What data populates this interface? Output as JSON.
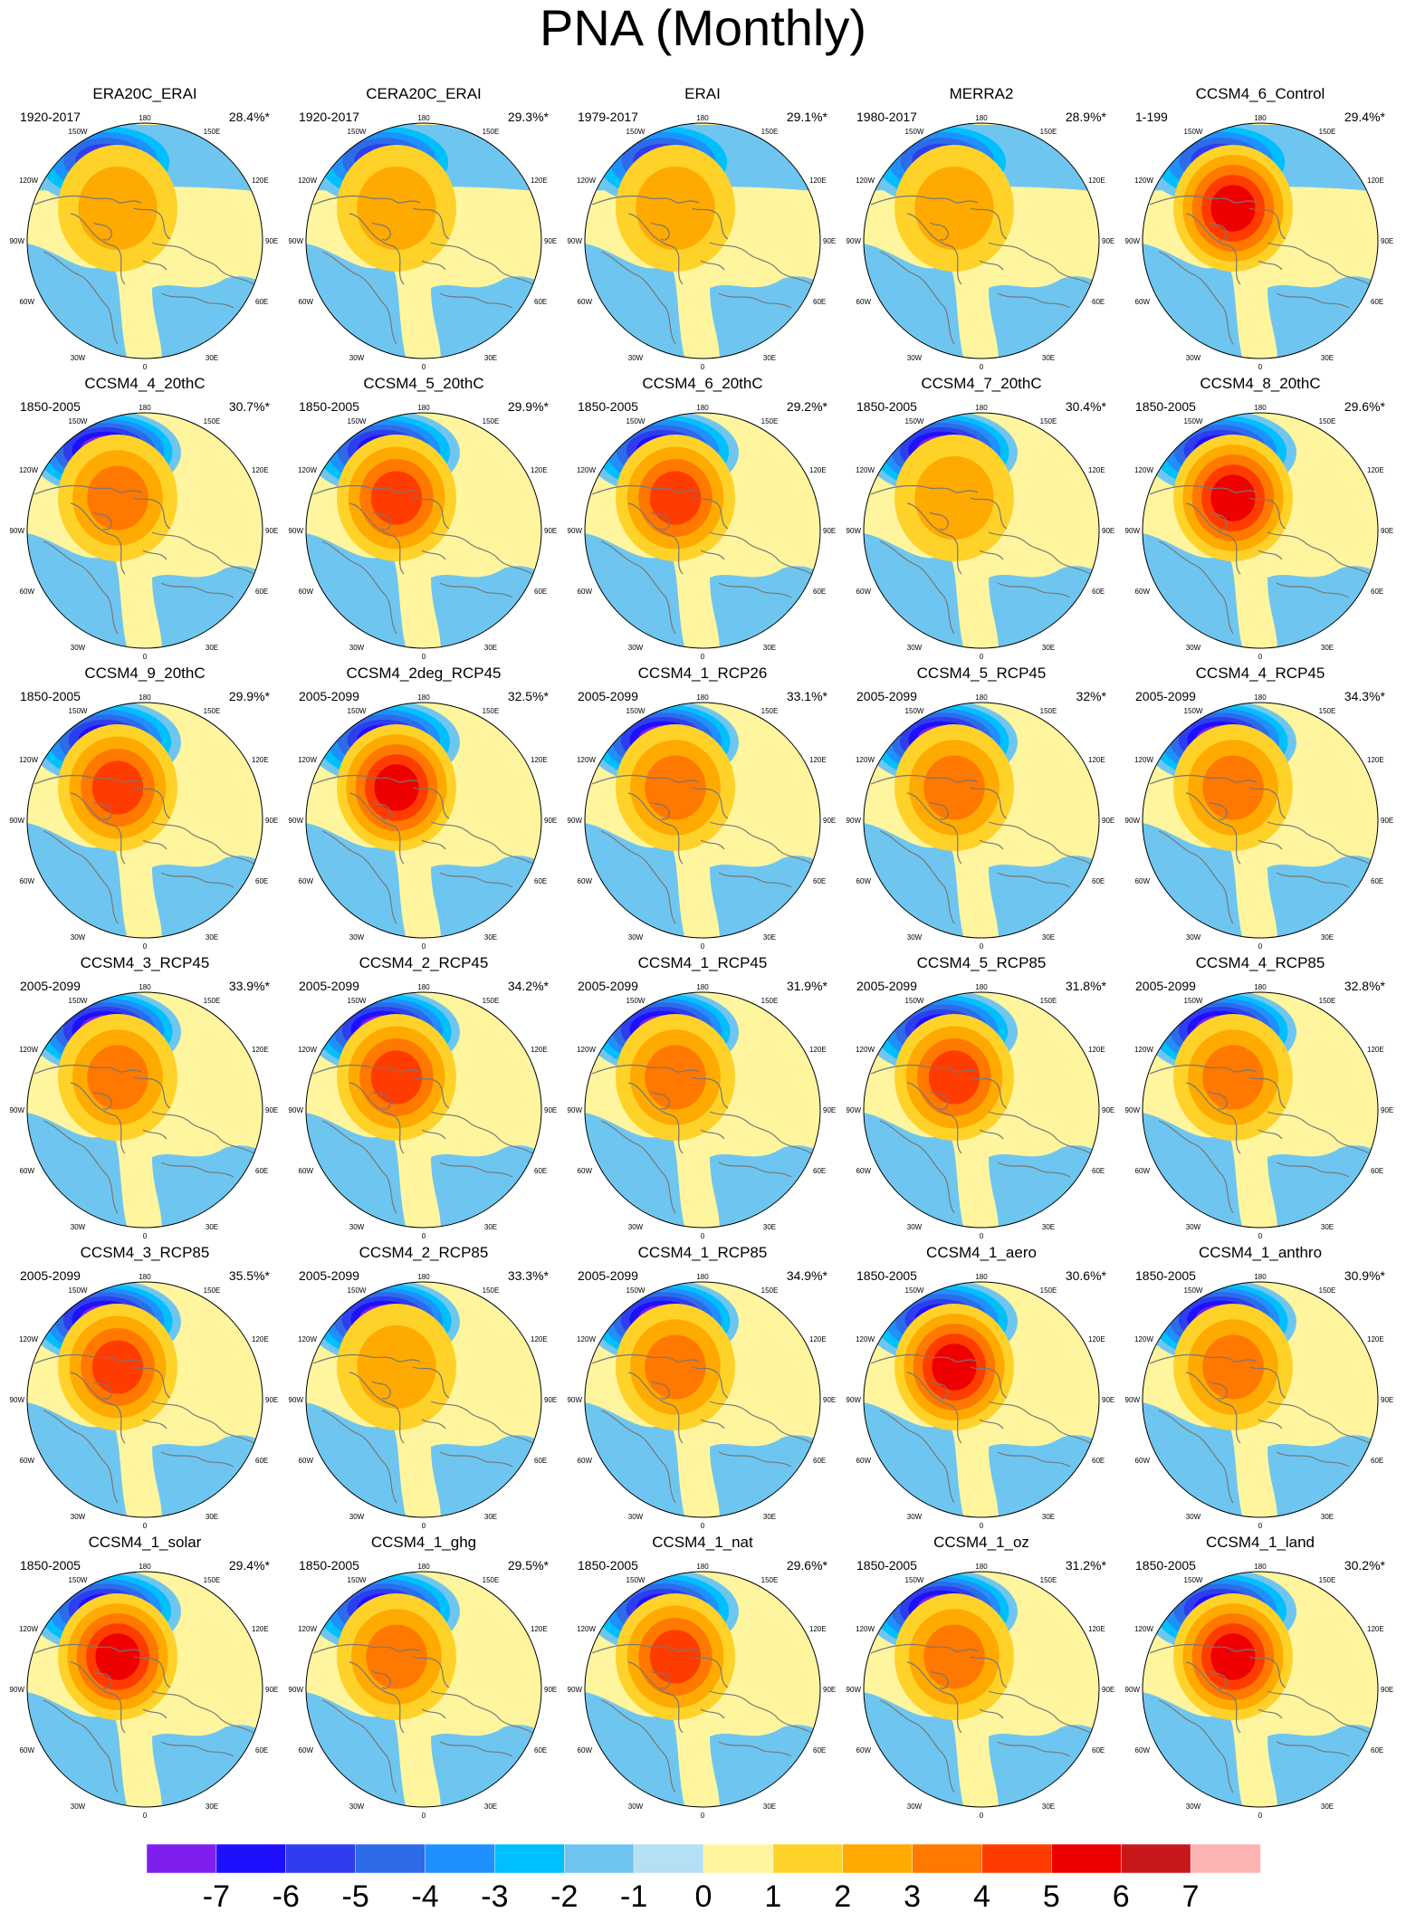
{
  "title": "PNA (Monthly)",
  "colors": {
    "levels": [
      "#7f1fef",
      "#1f0fff",
      "#2e3df0",
      "#2d6be8",
      "#1e90ff",
      "#00bfff",
      "#6ec6f0",
      "#b4dff4",
      "#fff59e",
      "#ffd22a",
      "#ffaa00",
      "#ff7800",
      "#ff3c00",
      "#ee0000",
      "#c8181c",
      "#ffb4b4"
    ],
    "coast": "#777777",
    "border": "#000000"
  },
  "colorbar": {
    "labels": [
      "-7",
      "-6",
      "-5",
      "-4",
      "-3",
      "-2",
      "-1",
      "0",
      "1",
      "2",
      "3",
      "4",
      "5",
      "6",
      "7"
    ]
  },
  "map_labels": {
    "top": "180",
    "left_top": "150W",
    "right_top": "150E",
    "left_upper": "120W",
    "right_upper": "120E",
    "left_mid": "90W",
    "right_mid": "90E",
    "left_lower": "60W",
    "right_lower": "60E",
    "left_bottom": "30W",
    "right_bottom": "30E",
    "bottom": "0"
  },
  "panels": [
    {
      "name": "ERA20C_ERAI",
      "years": "1920-2017",
      "pct": "28.4%*",
      "pos_peak": 2,
      "neg_peak": 5,
      "mid_neg": true
    },
    {
      "name": "CERA20C_ERAI",
      "years": "1920-2017",
      "pct": "29.3%*",
      "pos_peak": 2,
      "neg_peak": 5,
      "mid_neg": true
    },
    {
      "name": "ERAI",
      "years": "1979-2017",
      "pct": "29.1%*",
      "pos_peak": 2,
      "neg_peak": 5,
      "mid_neg": true
    },
    {
      "name": "MERRA2",
      "years": "1980-2017",
      "pct": "28.9%*",
      "pos_peak": 2,
      "neg_peak": 5,
      "mid_neg": true
    },
    {
      "name": "CCSM4_6_Control",
      "years": "1-199",
      "pct": "29.4%*",
      "pos_peak": 5,
      "neg_peak": 5,
      "mid_neg": true
    },
    {
      "name": "CCSM4_4_20thC",
      "years": "1850-2005",
      "pct": "30.7%*",
      "pos_peak": 3,
      "neg_peak": 7,
      "mid_neg": false
    },
    {
      "name": "CCSM4_5_20thC",
      "years": "1850-2005",
      "pct": "29.9%*",
      "pos_peak": 4,
      "neg_peak": 6,
      "mid_neg": false
    },
    {
      "name": "CCSM4_6_20thC",
      "years": "1850-2005",
      "pct": "29.2%*",
      "pos_peak": 4,
      "neg_peak": 6,
      "mid_neg": false
    },
    {
      "name": "CCSM4_7_20thC",
      "years": "1850-2005",
      "pct": "30.4%*",
      "pos_peak": 2,
      "neg_peak": 7,
      "mid_neg": false
    },
    {
      "name": "CCSM4_8_20thC",
      "years": "1850-2005",
      "pct": "29.6%*",
      "pos_peak": 5,
      "neg_peak": 6,
      "mid_neg": false
    },
    {
      "name": "CCSM4_9_20thC",
      "years": "1850-2005",
      "pct": "29.9%*",
      "pos_peak": 4,
      "neg_peak": 6,
      "mid_neg": false
    },
    {
      "name": "CCSM4_2deg_RCP45",
      "years": "2005-2099",
      "pct": "32.5%*",
      "pos_peak": 5,
      "neg_peak": 6,
      "mid_neg": false
    },
    {
      "name": "CCSM4_1_RCP26",
      "years": "2005-2099",
      "pct": "33.1%*",
      "pos_peak": 3,
      "neg_peak": 7,
      "mid_neg": false
    },
    {
      "name": "CCSM4_5_RCP45",
      "years": "2005-2099",
      "pct": "32%*",
      "pos_peak": 3,
      "neg_peak": 7,
      "mid_neg": false
    },
    {
      "name": "CCSM4_4_RCP45",
      "years": "2005-2099",
      "pct": "34.3%*",
      "pos_peak": 3,
      "neg_peak": 7,
      "mid_neg": false
    },
    {
      "name": "CCSM4_3_RCP45",
      "years": "2005-2099",
      "pct": "33.9%*",
      "pos_peak": 3,
      "neg_peak": 7,
      "mid_neg": false
    },
    {
      "name": "CCSM4_2_RCP45",
      "years": "2005-2099",
      "pct": "34.2%*",
      "pos_peak": 4,
      "neg_peak": 7,
      "mid_neg": false
    },
    {
      "name": "CCSM4_1_RCP45",
      "years": "2005-2099",
      "pct": "31.9%*",
      "pos_peak": 3,
      "neg_peak": 7,
      "mid_neg": false
    },
    {
      "name": "CCSM4_5_RCP85",
      "years": "2005-2099",
      "pct": "31.8%*",
      "pos_peak": 4,
      "neg_peak": 6,
      "mid_neg": false
    },
    {
      "name": "CCSM4_4_RCP85",
      "years": "2005-2099",
      "pct": "32.8%*",
      "pos_peak": 3,
      "neg_peak": 7,
      "mid_neg": false
    },
    {
      "name": "CCSM4_3_RCP85",
      "years": "2005-2099",
      "pct": "35.5%*",
      "pos_peak": 4,
      "neg_peak": 7,
      "mid_neg": false
    },
    {
      "name": "CCSM4_2_RCP85",
      "years": "2005-2099",
      "pct": "33.3%*",
      "pos_peak": 2,
      "neg_peak": 7,
      "mid_neg": false
    },
    {
      "name": "CCSM4_1_RCP85",
      "years": "2005-2099",
      "pct": "34.9%*",
      "pos_peak": 3,
      "neg_peak": 7,
      "mid_neg": false
    },
    {
      "name": "CCSM4_1_aero",
      "years": "1850-2005",
      "pct": "30.6%*",
      "pos_peak": 5,
      "neg_peak": 6,
      "mid_neg": false
    },
    {
      "name": "CCSM4_1_anthro",
      "years": "1850-2005",
      "pct": "30.9%*",
      "pos_peak": 3,
      "neg_peak": 7,
      "mid_neg": false
    },
    {
      "name": "CCSM4_1_solar",
      "years": "1850-2005",
      "pct": "29.4%*",
      "pos_peak": 5,
      "neg_peak": 6,
      "mid_neg": false
    },
    {
      "name": "CCSM4_1_ghg",
      "years": "1850-2005",
      "pct": "29.5%*",
      "pos_peak": 3,
      "neg_peak": 6,
      "mid_neg": false
    },
    {
      "name": "CCSM4_1_nat",
      "years": "1850-2005",
      "pct": "29.6%*",
      "pos_peak": 4,
      "neg_peak": 6,
      "mid_neg": false
    },
    {
      "name": "CCSM4_1_oz",
      "years": "1850-2005",
      "pct": "31.2%*",
      "pos_peak": 3,
      "neg_peak": 7,
      "mid_neg": false
    },
    {
      "name": "CCSM4_1_land",
      "years": "1850-2005",
      "pct": "30.2%*",
      "pos_peak": 5,
      "neg_peak": 6,
      "mid_neg": false
    }
  ]
}
